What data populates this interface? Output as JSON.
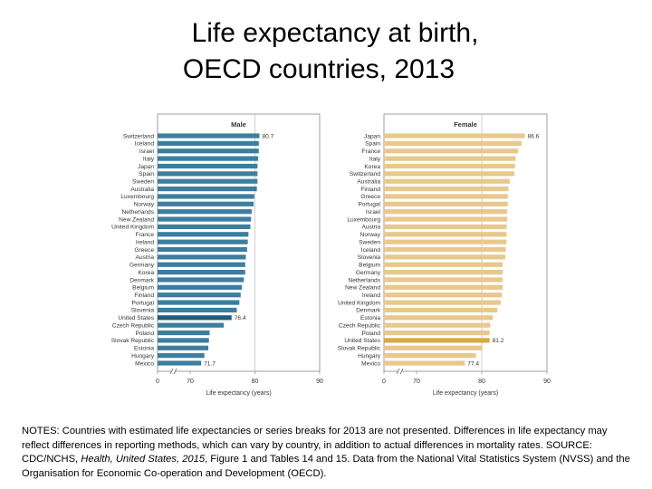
{
  "title_line1": "Life expectancy at birth,",
  "title_line2": "OECD countries, 2013",
  "chart_data": [
    {
      "type": "bar",
      "orientation": "horizontal",
      "title": "Male",
      "xlabel": "Life expectancy (years)",
      "xlim": [
        0,
        90
      ],
      "axis_break": [
        0,
        70
      ],
      "x_ticks": [
        "0",
        "70",
        "80",
        "90"
      ],
      "bar_color": "#3c7ea0",
      "highlight_color": "#1f5d7c",
      "highlight": [
        "United States"
      ],
      "categories": [
        "Switzerland",
        "Iceland",
        "Israel",
        "Italy",
        "Japan",
        "Spain",
        "Sweden",
        "Australia",
        "Luxembourg",
        "Norway",
        "Netherlands",
        "New Zealand",
        "United Kingdom",
        "France",
        "Ireland",
        "Greece",
        "Austria",
        "Germany",
        "Korea",
        "Denmark",
        "Belgium",
        "Finland",
        "Portugal",
        "Slovenia",
        "United States",
        "Czech Republic",
        "Poland",
        "Slovak Republic",
        "Estonia",
        "Hungary",
        "Mexico"
      ],
      "values": [
        80.7,
        80.6,
        80.6,
        80.5,
        80.4,
        80.4,
        80.4,
        80.3,
        79.9,
        79.8,
        79.5,
        79.4,
        79.3,
        79.0,
        78.9,
        78.8,
        78.6,
        78.5,
        78.5,
        78.3,
        78.0,
        77.8,
        77.6,
        77.2,
        76.4,
        75.2,
        73.0,
        72.9,
        72.8,
        72.2,
        71.7
      ],
      "data_labels": {
        "Switzerland": "80.7",
        "United States": "76.4",
        "Mexico": "71.7"
      }
    },
    {
      "type": "bar",
      "orientation": "horizontal",
      "title": "Female",
      "xlabel": "Life expectancy (years)",
      "xlim": [
        0,
        90
      ],
      "axis_break": [
        0,
        70
      ],
      "x_ticks": [
        "0",
        "70",
        "80",
        "90"
      ],
      "bar_color": "#e8c88c",
      "highlight_color": "#d8a848",
      "highlight": [
        "United States"
      ],
      "categories": [
        "Japan",
        "Spain",
        "France",
        "Italy",
        "Korea",
        "Switzerland",
        "Australia",
        "Finland",
        "Greece",
        "Portugal",
        "Israel",
        "Luxembourg",
        "Austria",
        "Norway",
        "Sweden",
        "Iceland",
        "Slovenia",
        "Belgium",
        "Germany",
        "Netherlands",
        "New Zealand",
        "Ireland",
        "United Kingdom",
        "Denmark",
        "Estonia",
        "Czech Republic",
        "Poland",
        "United States",
        "Slovak Republic",
        "Hungary",
        "Mexico"
      ],
      "values": [
        86.6,
        86.1,
        85.6,
        85.2,
        85.1,
        85.0,
        84.3,
        84.1,
        84.0,
        84.0,
        83.9,
        83.9,
        83.8,
        83.8,
        83.8,
        83.7,
        83.6,
        83.2,
        83.2,
        83.2,
        83.2,
        83.1,
        82.9,
        82.4,
        81.7,
        81.3,
        81.2,
        81.2,
        80.1,
        79.1,
        77.4
      ],
      "data_labels": {
        "Japan": "86.6",
        "United States": "81.2",
        "Mexico": "77.4"
      }
    }
  ],
  "notes": {
    "n1": "NOTES: Countries with estimated life expectancies or series breaks for 2013 are not presented. Differences in life expectancy may reflect differences in reporting methods, which can vary by country, in addition to actual differences in mortality rates. SOURCE: CDC/NCHS, ",
    "n2": "Health, United States, 2015",
    "n3": ", Figure 1 and Tables 14 and 15. Data from the National Vital Statistics System (NVSS) and the Organisation for Economic Co-operation and Development (OECD)."
  }
}
